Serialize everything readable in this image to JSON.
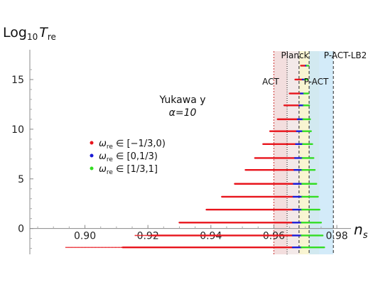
{
  "chart_data": {
    "type": "scatter",
    "title": "",
    "annotation": {
      "line1": "Yukawa y",
      "line2": "α=10"
    },
    "ylabel": {
      "prefix": "Log",
      "sub": "10",
      "var": "T",
      "varsub": "re"
    },
    "xlabel": {
      "var": "n",
      "sub": "s"
    },
    "xlim": [
      0.8825,
      0.9845
    ],
    "ylim": [
      -2.6,
      17.0
    ],
    "x_ticks": [
      0.9,
      0.92,
      0.94,
      0.96,
      0.98
    ],
    "x_tick_labels": [
      "0.90",
      "0.92",
      "0.94",
      "0.96",
      "0.98"
    ],
    "y_ticks": [
      0,
      5,
      10,
      15
    ],
    "y_tick_labels": [
      "0",
      "5",
      "10",
      "15"
    ],
    "grid": false,
    "legend_position": "middle-left",
    "legend": [
      {
        "label_var": "ω",
        "label_sub": "re",
        "label_set": " ∈ [−1/3,0)",
        "color": "#e8141c"
      },
      {
        "label_var": "ω",
        "label_sub": "re",
        "label_set": " ∈ [0,1/3)",
        "color": "#1a1ad6"
      },
      {
        "label_var": "ω",
        "label_sub": "re",
        "label_set": " ∈ [1/3,1]",
        "color": "#33dd22"
      }
    ],
    "bands": [
      {
        "name": "ACT",
        "x": [
          0.96,
          0.968
        ],
        "color": "#f0d6d6",
        "edge_color": "#cc3333"
      },
      {
        "name": "Planck",
        "x": [
          0.9642,
          0.969
        ],
        "color": "#f2f2f2",
        "edge_color": "#222222"
      },
      {
        "name": "P-ACT",
        "x": [
          0.968,
          0.9744
        ],
        "color": "#f7f2c7",
        "edge_color": "#222222"
      },
      {
        "name": "P-ACT-LB2",
        "x": [
          0.9712,
          0.9789
        ],
        "color": "#c8e6f8",
        "edge_color": "#222222"
      }
    ],
    "band_labels": {
      "act": "ACT",
      "planck": "Planck",
      "pact": "P-ACT",
      "pactlb2": "P-ACT-LB2"
    },
    "series": [
      {
        "y": 16.4,
        "red": [
          0.9686,
          0.9701
        ],
        "blue": [
          0.9701,
          0.9705
        ],
        "green": [
          0.9705,
          0.971
        ]
      },
      {
        "y": 15.0,
        "red": [
          0.9668,
          0.9691
        ],
        "blue": [
          0.9691,
          0.9698
        ],
        "green": [
          0.9698,
          0.9706
        ]
      },
      {
        "y": 13.6,
        "red": [
          0.965,
          0.9685
        ],
        "blue": [
          0.9685,
          0.9696
        ],
        "green": [
          0.9696,
          0.9709
        ]
      },
      {
        "y": 12.4,
        "red": [
          0.9633,
          0.9681
        ],
        "blue": [
          0.9681,
          0.9695
        ],
        "green": [
          0.9695,
          0.9712
        ]
      },
      {
        "y": 11.0,
        "red": [
          0.9612,
          0.9676
        ],
        "blue": [
          0.9676,
          0.9693
        ],
        "green": [
          0.9693,
          0.9715
        ]
      },
      {
        "y": 9.8,
        "red": [
          0.9588,
          0.9673
        ],
        "blue": [
          0.9673,
          0.9692
        ],
        "green": [
          0.9692,
          0.9718
        ]
      },
      {
        "y": 8.5,
        "red": [
          0.9566,
          0.967
        ],
        "blue": [
          0.967,
          0.9692
        ],
        "green": [
          0.9692,
          0.9722
        ]
      },
      {
        "y": 7.1,
        "red": [
          0.954,
          0.9667
        ],
        "blue": [
          0.9667,
          0.9691
        ],
        "green": [
          0.9691,
          0.9726
        ]
      },
      {
        "y": 5.9,
        "red": [
          0.951,
          0.9665
        ],
        "blue": [
          0.9665,
          0.969
        ],
        "green": [
          0.969,
          0.973
        ]
      },
      {
        "y": 4.5,
        "red": [
          0.9476,
          0.9663
        ],
        "blue": [
          0.9663,
          0.969
        ],
        "green": [
          0.969,
          0.9735
        ]
      },
      {
        "y": 3.2,
        "red": [
          0.9435,
          0.9662
        ],
        "blue": [
          0.9662,
          0.969
        ],
        "green": [
          0.969,
          0.974
        ]
      },
      {
        "y": 1.9,
        "red": [
          0.9386,
          0.9661
        ],
        "blue": [
          0.9661,
          0.9689
        ],
        "green": [
          0.9689,
          0.9745
        ]
      },
      {
        "y": 0.6,
        "red": [
          0.93,
          0.966
        ],
        "blue": [
          0.966,
          0.9688
        ],
        "green": [
          0.9688,
          0.975
        ]
      },
      {
        "y": -0.7,
        "red": [
          0.921,
          0.966
        ],
        "blue": [
          0.966,
          0.9688
        ],
        "green": [
          0.9688,
          0.9755
        ]
      },
      {
        "y": -1.9,
        "red": [
          0.912,
          0.966
        ],
        "blue": [
          0.966,
          0.9688
        ],
        "green": [
          0.9688,
          0.976
        ]
      }
    ],
    "sparse_tails": [
      {
        "y": -0.7,
        "x": [
          0.916,
          0.921
        ]
      },
      {
        "y": -1.9,
        "x": [
          0.894,
          0.912
        ]
      }
    ]
  }
}
